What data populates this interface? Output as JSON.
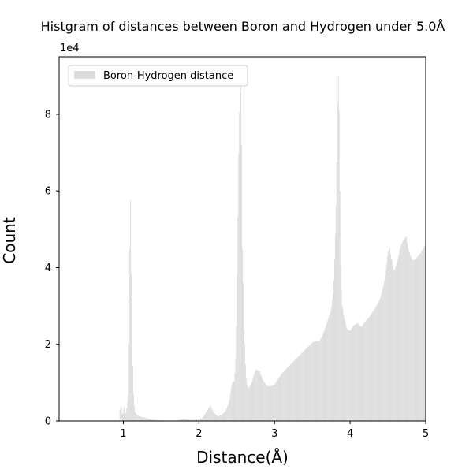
{
  "chart_data": {
    "type": "bar",
    "title": "Histgram of distances between Boron and Hydrogen under 5.0Å",
    "xlabel": "Distance(Å)",
    "ylabel": "Count",
    "y_scale_label": "1e4",
    "xlim": [
      0.15,
      5.0
    ],
    "ylim": [
      0,
      95000
    ],
    "xticks": [
      1,
      2,
      3,
      4,
      5
    ],
    "xtick_labels": [
      "1",
      "2",
      "3",
      "4",
      "5"
    ],
    "yticks": [
      0,
      20000,
      40000,
      60000,
      80000
    ],
    "ytick_labels": [
      "0",
      "2",
      "4",
      "6",
      "8"
    ],
    "legend_position": "top-left",
    "grid": false,
    "bar_color": "#dddddd",
    "series": [
      {
        "name": "Boron-Hydrogen distance",
        "points": [
          [
            0.95,
            2500
          ],
          [
            0.97,
            3800
          ],
          [
            0.99,
            1200
          ],
          [
            1.01,
            3800
          ],
          [
            1.03,
            1500
          ],
          [
            1.05,
            4000
          ],
          [
            1.07,
            7500
          ],
          [
            1.09,
            57500
          ],
          [
            1.11,
            32000
          ],
          [
            1.13,
            8500
          ],
          [
            1.15,
            2500
          ],
          [
            1.17,
            1800
          ],
          [
            1.2,
            1300
          ],
          [
            1.25,
            1000
          ],
          [
            1.3,
            800
          ],
          [
            1.35,
            500
          ],
          [
            1.4,
            300
          ],
          [
            1.5,
            150
          ],
          [
            1.6,
            80
          ],
          [
            1.7,
            60
          ],
          [
            1.8,
            600
          ],
          [
            1.85,
            400
          ],
          [
            1.9,
            300
          ],
          [
            1.95,
            300
          ],
          [
            2.0,
            400
          ],
          [
            2.05,
            800
          ],
          [
            2.1,
            2500
          ],
          [
            2.15,
            4000
          ],
          [
            2.2,
            2000
          ],
          [
            2.25,
            1200
          ],
          [
            2.3,
            1600
          ],
          [
            2.35,
            2500
          ],
          [
            2.4,
            5000
          ],
          [
            2.44,
            10000
          ],
          [
            2.47,
            10500
          ],
          [
            2.49,
            18000
          ],
          [
            2.51,
            45000
          ],
          [
            2.53,
            78000
          ],
          [
            2.55,
            88000
          ],
          [
            2.56,
            72000
          ],
          [
            2.58,
            36000
          ],
          [
            2.6,
            20000
          ],
          [
            2.63,
            9500
          ],
          [
            2.66,
            8500
          ],
          [
            2.7,
            10000
          ],
          [
            2.75,
            13500
          ],
          [
            2.8,
            13000
          ],
          [
            2.85,
            10500
          ],
          [
            2.9,
            9200
          ],
          [
            2.95,
            9000
          ],
          [
            3.0,
            9500
          ],
          [
            3.05,
            11000
          ],
          [
            3.1,
            12500
          ],
          [
            3.15,
            13500
          ],
          [
            3.2,
            14500
          ],
          [
            3.25,
            15500
          ],
          [
            3.3,
            16500
          ],
          [
            3.35,
            17500
          ],
          [
            3.4,
            18500
          ],
          [
            3.45,
            19500
          ],
          [
            3.5,
            20500
          ],
          [
            3.55,
            20800
          ],
          [
            3.6,
            21000
          ],
          [
            3.65,
            23000
          ],
          [
            3.7,
            26000
          ],
          [
            3.75,
            29000
          ],
          [
            3.78,
            34000
          ],
          [
            3.8,
            45000
          ],
          [
            3.82,
            60000
          ],
          [
            3.84,
            90000
          ],
          [
            3.85,
            81000
          ],
          [
            3.86,
            60000
          ],
          [
            3.88,
            34000
          ],
          [
            3.9,
            29000
          ],
          [
            3.93,
            26000
          ],
          [
            3.96,
            24000
          ],
          [
            4.0,
            23500
          ],
          [
            4.05,
            25000
          ],
          [
            4.1,
            25500
          ],
          [
            4.15,
            24500
          ],
          [
            4.2,
            26000
          ],
          [
            4.25,
            27000
          ],
          [
            4.3,
            28500
          ],
          [
            4.35,
            30000
          ],
          [
            4.4,
            32000
          ],
          [
            4.45,
            36000
          ],
          [
            4.48,
            40000
          ],
          [
            4.5,
            44000
          ],
          [
            4.52,
            45000
          ],
          [
            4.55,
            42000
          ],
          [
            4.58,
            39000
          ],
          [
            4.62,
            41000
          ],
          [
            4.66,
            45000
          ],
          [
            4.7,
            47000
          ],
          [
            4.74,
            48000
          ],
          [
            4.78,
            44000
          ],
          [
            4.82,
            42000
          ],
          [
            4.86,
            42000
          ],
          [
            4.9,
            43000
          ],
          [
            4.94,
            44000
          ],
          [
            4.98,
            45500
          ],
          [
            5.0,
            46000
          ]
        ]
      }
    ]
  }
}
